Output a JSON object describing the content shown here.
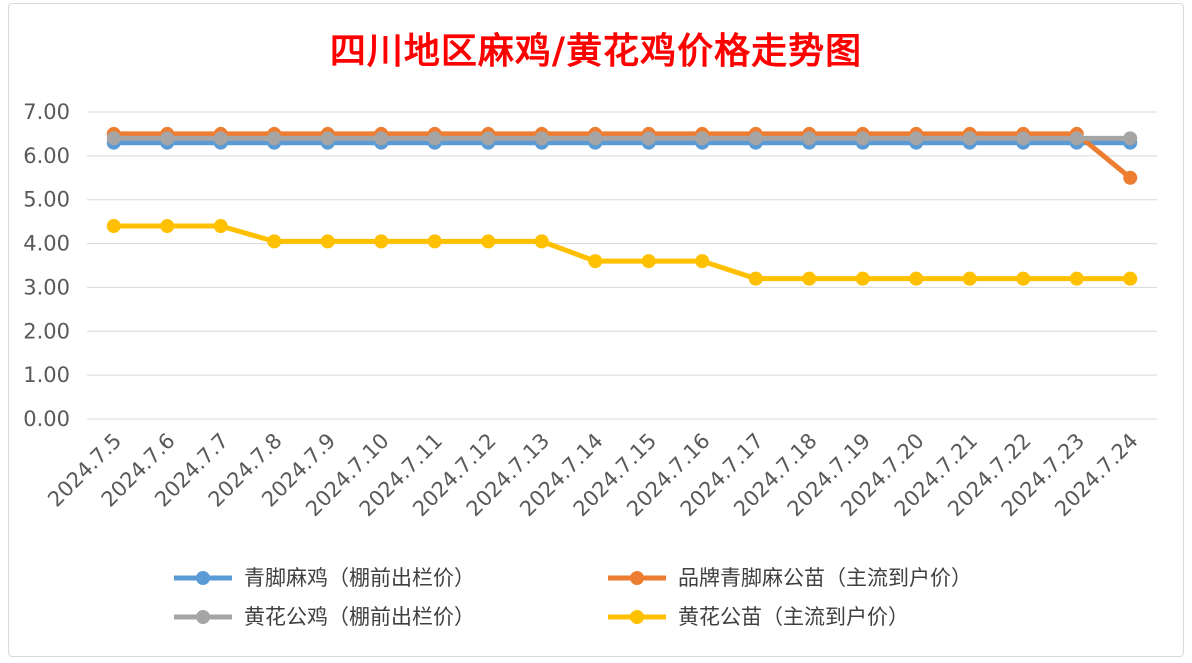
{
  "chart_data": {
    "type": "line",
    "title": "四川地区麻鸡/黄花鸡价格走势图",
    "xlabel": "",
    "ylabel": "",
    "ylim": [
      0,
      7
    ],
    "yticks": [
      "0.00",
      "1.00",
      "2.00",
      "3.00",
      "4.00",
      "5.00",
      "6.00",
      "7.00"
    ],
    "grid": true,
    "legend_position": "bottom",
    "categories": [
      "2024.7.5",
      "2024.7.6",
      "2024.7.7",
      "2024.7.8",
      "2024.7.9",
      "2024.7.10",
      "2024.7.11",
      "2024.7.12",
      "2024.7.13",
      "2024.7.14",
      "2024.7.15",
      "2024.7.16",
      "2024.7.17",
      "2024.7.18",
      "2024.7.19",
      "2024.7.20",
      "2024.7.21",
      "2024.7.22",
      "2024.7.23",
      "2024.7.24"
    ],
    "series": [
      {
        "name": "青脚麻鸡（棚前出栏价）",
        "color": "#5b9bd5",
        "values": [
          6.3,
          6.3,
          6.3,
          6.3,
          6.3,
          6.3,
          6.3,
          6.3,
          6.3,
          6.3,
          6.3,
          6.3,
          6.3,
          6.3,
          6.3,
          6.3,
          6.3,
          6.3,
          6.3,
          6.3
        ]
      },
      {
        "name": "品牌青脚麻公苗（主流到户价）",
        "color": "#ed7d31",
        "values": [
          6.5,
          6.5,
          6.5,
          6.5,
          6.5,
          6.5,
          6.5,
          6.5,
          6.5,
          6.5,
          6.5,
          6.5,
          6.5,
          6.5,
          6.5,
          6.5,
          6.5,
          6.5,
          6.5,
          5.5
        ]
      },
      {
        "name": "黄花公鸡（棚前出栏价）",
        "color": "#a5a5a5",
        "values": [
          6.4,
          6.4,
          6.4,
          6.4,
          6.4,
          6.4,
          6.4,
          6.4,
          6.4,
          6.4,
          6.4,
          6.4,
          6.4,
          6.4,
          6.4,
          6.4,
          6.4,
          6.4,
          6.4,
          6.4
        ]
      },
      {
        "name": "黄花公苗（主流到户价）",
        "color": "#ffc000",
        "values": [
          4.4,
          4.4,
          4.4,
          4.05,
          4.05,
          4.05,
          4.05,
          4.05,
          4.05,
          3.6,
          3.6,
          3.6,
          3.2,
          3.2,
          3.2,
          3.2,
          3.2,
          3.2,
          3.2,
          3.2
        ]
      }
    ]
  }
}
